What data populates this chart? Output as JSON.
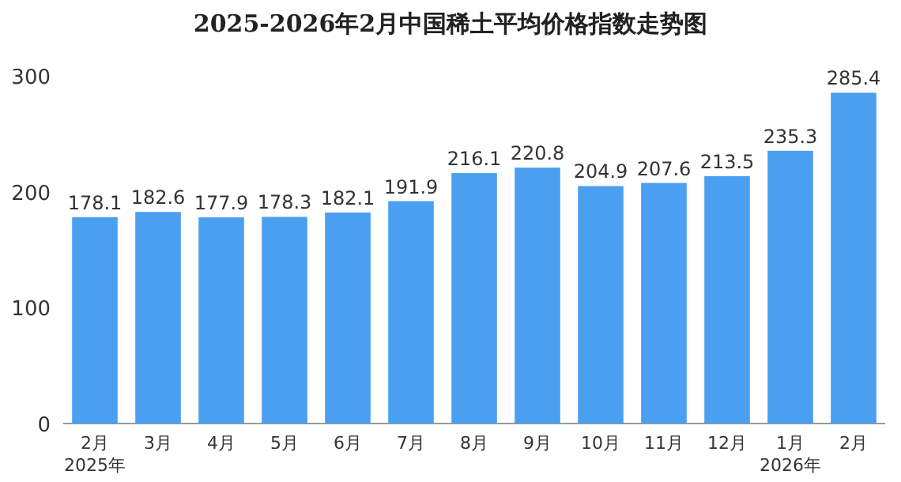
{
  "chart_data": {
    "type": "bar",
    "title": "2025-2026年2月中国稀土平均价格指数走势图",
    "categories": [
      "2月\n2025年",
      "3月",
      "4月",
      "5月",
      "6月",
      "7月",
      "8月",
      "9月",
      "10月",
      "11月",
      "12月",
      "1月\n2026年",
      "2月"
    ],
    "values": [
      178.1,
      182.6,
      177.9,
      178.3,
      182.1,
      191.9,
      216.1,
      220.8,
      204.9,
      207.6,
      213.5,
      235.3,
      285.4
    ],
    "color": "#4a9ff0",
    "ylim": [
      0,
      300
    ],
    "yticks": [
      0,
      100,
      200,
      300
    ],
    "data_labels": true,
    "grid": false
  }
}
